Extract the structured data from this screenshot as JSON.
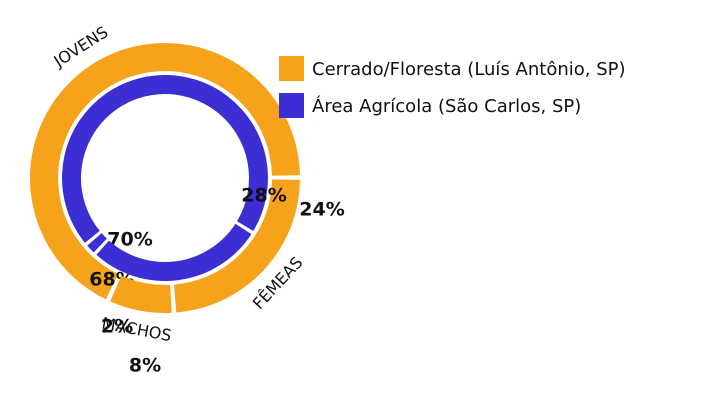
{
  "chart_data": {
    "type": "nested-donut",
    "categories": [
      "JOVENS",
      "FÊMEAS",
      "MACHOS"
    ],
    "series": [
      {
        "name": "Cerrado/Floresta (Luís Antônio, SP)",
        "color": "#f7a21b",
        "values": [
          68,
          24,
          8
        ],
        "value_labels": [
          "68%",
          "24%",
          "8%"
        ]
      },
      {
        "name": "Área Agrícola (São Carlos, SP)",
        "color": "#3b2fd4",
        "values": [
          70,
          28,
          2
        ],
        "value_labels": [
          "70%",
          "28%",
          "2%"
        ]
      }
    ]
  }
}
